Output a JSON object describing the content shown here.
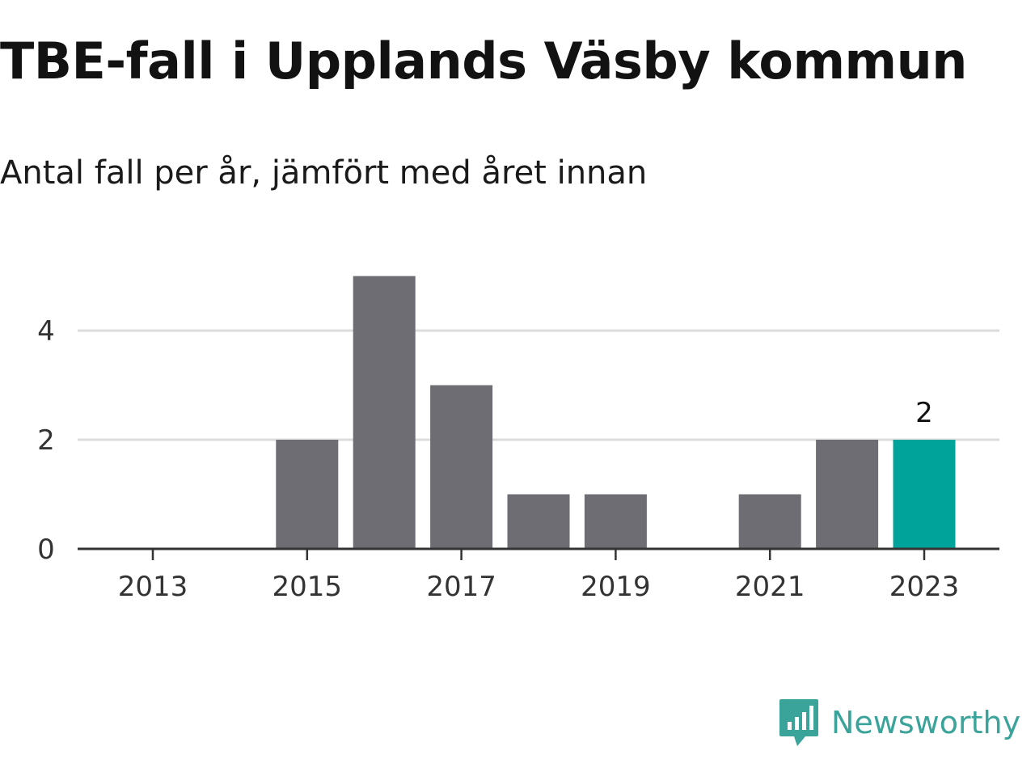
{
  "header": {
    "title": "TBE-fall i Upplands Väsby kommun",
    "subtitle": "Antal fall per år, jämfört med året innan"
  },
  "brand": {
    "name": "Newsworthy",
    "icon": "newsworthy-logo-icon",
    "color": "#3aa39a"
  },
  "colors": {
    "bar": "#6e6d73",
    "highlight": "#00a399",
    "grid": "#dcdcdc",
    "axis": "#333333"
  },
  "chart_data": {
    "type": "bar",
    "categories": [
      "2013",
      "2014",
      "2015",
      "2016",
      "2017",
      "2018",
      "2019",
      "2020",
      "2021",
      "2022",
      "2023"
    ],
    "values": [
      0,
      0,
      2,
      5,
      3,
      1,
      1,
      0,
      1,
      2,
      2
    ],
    "x_tick_labels": [
      "2013",
      "2015",
      "2017",
      "2019",
      "2021",
      "2023"
    ],
    "y_ticks": [
      0,
      2,
      4
    ],
    "ylim": [
      0,
      5
    ],
    "grid": true,
    "highlight_category": "2023",
    "data_labels": [
      {
        "category": "2023",
        "text": "2"
      }
    ],
    "title": "TBE-fall i Upplands Väsby kommun",
    "subtitle": "Antal fall per år, jämfört med året innan",
    "xlabel": "",
    "ylabel": ""
  }
}
